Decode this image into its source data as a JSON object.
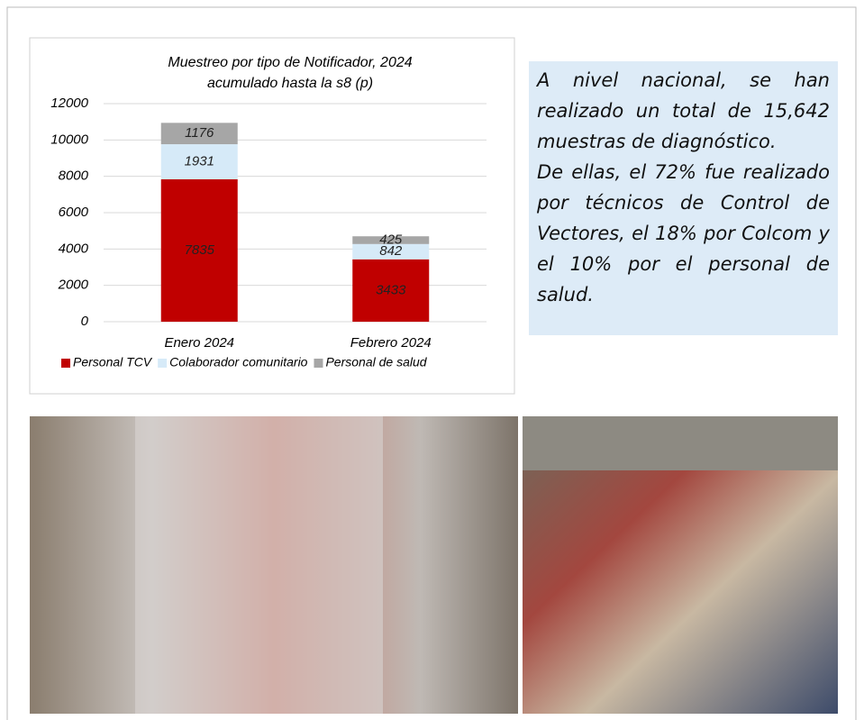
{
  "chart_data": {
    "type": "stacked_bar",
    "title": "Muestreo por tipo de Notificador, 2024",
    "subtitle": "acumulado hasta la s8 (p)",
    "categories": [
      "Enero 2024",
      "Febrero 2024"
    ],
    "series": [
      {
        "name": "Personal TCV",
        "color": "#c00000",
        "values": [
          7835,
          3433
        ]
      },
      {
        "name": "Colaborador comunitario",
        "color": "#d6eaf8",
        "values": [
          1931,
          842
        ]
      },
      {
        "name": "Personal de salud",
        "color": "#a6a6a6",
        "values": [
          1176,
          425
        ]
      }
    ],
    "ylim": [
      0,
      12000
    ],
    "yticks": [
      0,
      2000,
      4000,
      6000,
      8000,
      10000,
      12000
    ],
    "grid": true,
    "legend": "bottom"
  },
  "text_box": {
    "paragraphs": [
      "A nivel nacional, se han realizado un total de 15,642 muestras de diagnóstico.",
      "De ellas, el 72% fue realizado por técnicos de Control de Vectores, el 18% por Colcom y el 10% por el personal de salud."
    ]
  }
}
